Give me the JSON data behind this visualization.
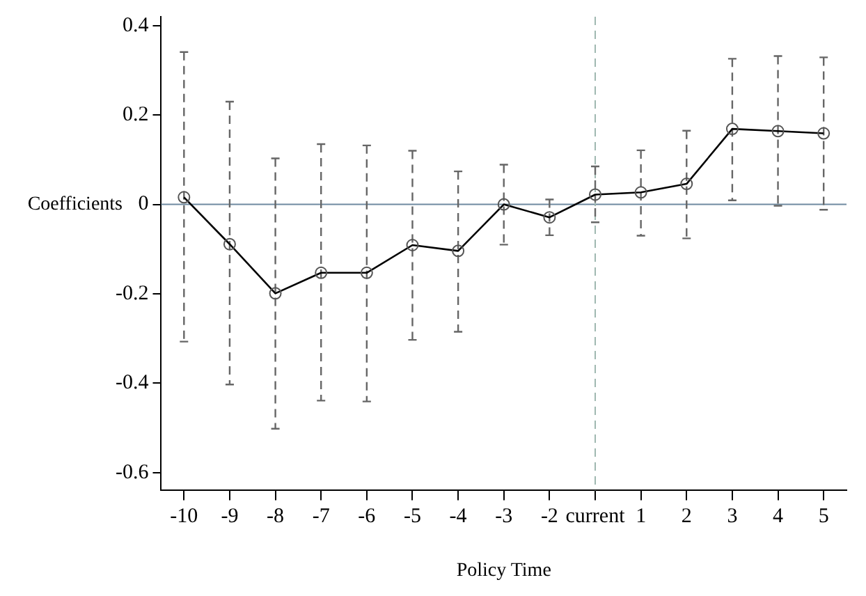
{
  "chart_data": {
    "type": "line",
    "xlabel": "Policy Time",
    "ylabel": "Coefficients",
    "categories": [
      "-10",
      "-9",
      "-8",
      "-7",
      "-6",
      "-5",
      "-4",
      "-3",
      "-2",
      "current",
      "1",
      "2",
      "3",
      "4",
      "5"
    ],
    "series": [
      {
        "color": "#000000",
        "values": [
          0.016,
          -0.089,
          -0.199,
          -0.153,
          -0.153,
          -0.091,
          -0.104,
          0,
          -0.029,
          0.022,
          0.027,
          0.046,
          0.169,
          0.164,
          0.159
        ],
        "errors": [
          [
            -0.307,
            0.341
          ],
          [
            -0.403,
            0.23
          ],
          [
            -0.502,
            0.103
          ],
          [
            -0.439,
            0.135
          ],
          [
            -0.441,
            0.132
          ],
          [
            -0.303,
            0.12
          ],
          [
            -0.285,
            0.074
          ],
          [
            -0.09,
            0.089
          ],
          [
            -0.069,
            0.011
          ],
          [
            -0.04,
            0.085
          ],
          [
            -0.07,
            0.121
          ],
          [
            -0.076,
            0.165
          ],
          [
            0.009,
            0.326
          ],
          [
            -0.003,
            0.332
          ],
          [
            -0.012,
            0.329
          ]
        ]
      }
    ],
    "ylim": [
      -0.64,
      0.42
    ],
    "yticks": [
      {
        "value": -0.6,
        "label": "-0.6"
      },
      {
        "value": -0.4,
        "label": "-0.4"
      },
      {
        "value": -0.2,
        "label": "-0.2"
      },
      0,
      {
        "value": 0.2,
        "label": "0.2"
      },
      {
        "value": 0.4,
        "label": "0.4"
      }
    ],
    "marker": "circle",
    "line_style": "solid",
    "legend": false,
    "ref_lines": [
      {
        "axis": "y",
        "value": 0,
        "color": "#6e8aa0",
        "line_style": "solid"
      },
      {
        "axis": "x",
        "value": "current",
        "color": "#9fb8b0",
        "line_style": "dashed"
      }
    ]
  }
}
